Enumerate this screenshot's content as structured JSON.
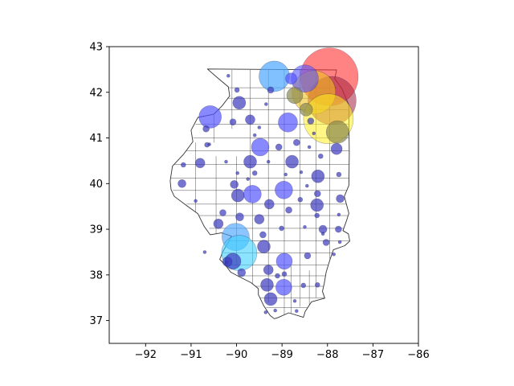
{
  "chart_data": {
    "type": "scatter",
    "xlim": [
      -92.8,
      -86.0
    ],
    "ylim": [
      36.5,
      43.0
    ],
    "xticks": [
      -92,
      -91,
      -90,
      -89,
      -88,
      -87,
      -86
    ],
    "yticks": [
      37,
      38,
      39,
      40,
      41,
      42,
      43
    ],
    "xtick_labels": [
      "−92",
      "−91",
      "−90",
      "−89",
      "−88",
      "−87",
      "−86"
    ],
    "ytick_labels": [
      "37",
      "38",
      "39",
      "40",
      "41",
      "42",
      "43"
    ],
    "grid": false,
    "colors": {
      "small": "#3a3abd",
      "medium": "#5555ff",
      "light_blue": "#4da6ff",
      "cyan": "#40d0ff",
      "red": "#ff3030",
      "dark_red": "#a02040",
      "gold": "#f0c020",
      "yellow": "#ffee20",
      "olive": "#8a8a50",
      "map_edge": "#333333"
    },
    "state_outline": [
      [
        -90.64,
        42.51
      ],
      [
        -87.8,
        42.49
      ],
      [
        -87.84,
        42.3
      ],
      [
        -87.68,
        42.07
      ],
      [
        -87.53,
        41.72
      ],
      [
        -87.53,
        41.47
      ],
      [
        -87.52,
        40.64
      ],
      [
        -87.53,
        39.96
      ],
      [
        -87.63,
        39.72
      ],
      [
        -87.53,
        39.35
      ],
      [
        -87.58,
        39.19
      ],
      [
        -87.66,
        38.97
      ],
      [
        -87.54,
        38.9
      ],
      [
        -87.51,
        38.74
      ],
      [
        -87.62,
        38.64
      ],
      [
        -87.87,
        38.55
      ],
      [
        -87.95,
        38.32
      ],
      [
        -88.03,
        38.06
      ],
      [
        -88.07,
        37.82
      ],
      [
        -88.11,
        37.64
      ],
      [
        -88.06,
        37.49
      ],
      [
        -88.35,
        37.41
      ],
      [
        -88.49,
        37.2
      ],
      [
        -88.53,
        37.07
      ],
      [
        -88.85,
        37.17
      ],
      [
        -89.1,
        37.06
      ],
      [
        -89.17,
        37.04
      ],
      [
        -89.26,
        37.11
      ],
      [
        -89.4,
        37.32
      ],
      [
        -89.52,
        37.57
      ],
      [
        -89.52,
        37.7
      ],
      [
        -89.68,
        37.83
      ],
      [
        -89.96,
        37.97
      ],
      [
        -90.13,
        38.06
      ],
      [
        -90.25,
        38.22
      ],
      [
        -90.37,
        38.34
      ],
      [
        -90.3,
        38.51
      ],
      [
        -90.19,
        38.7
      ],
      [
        -90.11,
        38.85
      ],
      [
        -90.33,
        38.92
      ],
      [
        -90.58,
        38.88
      ],
      [
        -90.71,
        39.06
      ],
      [
        -90.85,
        39.34
      ],
      [
        -91.1,
        39.52
      ],
      [
        -91.37,
        39.72
      ],
      [
        -91.44,
        39.87
      ],
      [
        -91.46,
        40.06
      ],
      [
        -91.41,
        40.38
      ],
      [
        -91.16,
        40.65
      ],
      [
        -90.96,
        40.92
      ],
      [
        -91.0,
        41.17
      ],
      [
        -90.85,
        41.45
      ],
      [
        -90.5,
        41.52
      ],
      [
        -90.32,
        41.7
      ],
      [
        -90.15,
        41.92
      ],
      [
        -90.18,
        42.12
      ],
      [
        -90.42,
        42.32
      ],
      [
        -90.64,
        42.51
      ]
    ],
    "county_lines": [
      [
        [
          -90.5,
          42.1
        ],
        [
          -87.8,
          42.1
        ]
      ],
      [
        [
          -90.2,
          41.87
        ],
        [
          -87.7,
          41.87
        ]
      ],
      [
        [
          -90.4,
          41.62
        ],
        [
          -87.55,
          41.62
        ]
      ],
      [
        [
          -90.9,
          41.3
        ],
        [
          -87.53,
          41.3
        ]
      ],
      [
        [
          -90.95,
          41.0
        ],
        [
          -87.53,
          41.0
        ]
      ],
      [
        [
          -91.1,
          40.72
        ],
        [
          -87.52,
          40.72
        ]
      ],
      [
        [
          -91.4,
          40.42
        ],
        [
          -87.52,
          40.42
        ]
      ],
      [
        [
          -91.45,
          40.12
        ],
        [
          -87.53,
          40.12
        ]
      ],
      [
        [
          -91.4,
          39.85
        ],
        [
          -87.53,
          39.85
        ]
      ],
      [
        [
          -91.1,
          39.55
        ],
        [
          -87.55,
          39.55
        ]
      ],
      [
        [
          -90.85,
          39.3
        ],
        [
          -87.55,
          39.3
        ]
      ],
      [
        [
          -90.6,
          39.02
        ],
        [
          -87.62,
          39.02
        ]
      ],
      [
        [
          -90.2,
          38.75
        ],
        [
          -87.52,
          38.75
        ]
      ],
      [
        [
          -90.28,
          38.48
        ],
        [
          -87.85,
          38.48
        ]
      ],
      [
        [
          -90.2,
          38.22
        ],
        [
          -87.96,
          38.22
        ]
      ],
      [
        [
          -89.98,
          37.98
        ],
        [
          -88.05,
          37.98
        ]
      ],
      [
        [
          -89.7,
          37.75
        ],
        [
          -88.08,
          37.75
        ]
      ],
      [
        [
          -89.52,
          37.5
        ],
        [
          -88.07,
          37.5
        ]
      ],
      [
        [
          -89.35,
          37.28
        ],
        [
          -88.4,
          37.28
        ]
      ],
      [
        [
          -90.1,
          42.49
        ],
        [
          -90.1,
          41.2
        ]
      ],
      [
        [
          -89.7,
          42.49
        ],
        [
          -89.7,
          39.6
        ]
      ],
      [
        [
          -89.3,
          42.49
        ],
        [
          -89.3,
          37.4
        ]
      ],
      [
        [
          -88.95,
          42.49
        ],
        [
          -88.95,
          37.12
        ]
      ],
      [
        [
          -88.6,
          42.49
        ],
        [
          -88.6,
          37.3
        ]
      ],
      [
        [
          -88.25,
          42.49
        ],
        [
          -88.25,
          37.5
        ]
      ],
      [
        [
          -87.95,
          42.35
        ],
        [
          -87.95,
          38.35
        ]
      ],
      [
        [
          -90.5,
          41.5
        ],
        [
          -90.5,
          40.9
        ]
      ],
      [
        [
          -90.9,
          40.9
        ],
        [
          -90.9,
          39.3
        ]
      ],
      [
        [
          -90.45,
          40.6
        ],
        [
          -90.45,
          38.9
        ]
      ],
      [
        [
          -90.0,
          40.6
        ],
        [
          -90.0,
          38.2
        ]
      ],
      [
        [
          -89.65,
          39.6
        ],
        [
          -89.65,
          37.7
        ]
      ],
      [
        [
          -88.8,
          38.2
        ],
        [
          -88.8,
          37.15
        ]
      ],
      [
        [
          -88.4,
          38.1
        ],
        [
          -88.4,
          37.35
        ]
      ]
    ],
    "points": [
      {
        "x": -87.96,
        "y": 42.34,
        "r": 36,
        "color": "red",
        "alpha": 0.6
      },
      {
        "x": -87.9,
        "y": 41.82,
        "r": 30,
        "color": "dark_red",
        "alpha": 0.55
      },
      {
        "x": -88.3,
        "y": 42.0,
        "r": 27,
        "color": "gold",
        "alpha": 0.6
      },
      {
        "x": -87.98,
        "y": 41.42,
        "r": 31,
        "color": "yellow",
        "alpha": 0.55
      },
      {
        "x": -88.5,
        "y": 42.3,
        "r": 17,
        "color": "medium",
        "alpha": 0.6
      },
      {
        "x": -89.17,
        "y": 42.35,
        "r": 19,
        "color": "light_blue",
        "alpha": 0.7
      },
      {
        "x": -88.8,
        "y": 42.3,
        "r": 7,
        "color": "medium",
        "alpha": 0.7
      },
      {
        "x": -88.72,
        "y": 41.93,
        "r": 10,
        "color": "olive",
        "alpha": 0.7
      },
      {
        "x": -88.47,
        "y": 41.62,
        "r": 8,
        "color": "olive",
        "alpha": 0.7
      },
      {
        "x": -87.78,
        "y": 41.13,
        "r": 14,
        "color": "olive",
        "alpha": 0.7
      },
      {
        "x": -88.37,
        "y": 41.37,
        "r": 4,
        "color": "small",
        "alpha": 0.7
      },
      {
        "x": -87.8,
        "y": 40.76,
        "r": 7,
        "color": "small",
        "alpha": 0.7
      },
      {
        "x": -88.15,
        "y": 40.6,
        "r": 3,
        "color": "small",
        "alpha": 0.7
      },
      {
        "x": -90.58,
        "y": 41.46,
        "r": 14,
        "color": "medium",
        "alpha": 0.7
      },
      {
        "x": -90.67,
        "y": 41.2,
        "r": 4,
        "color": "small",
        "alpha": 0.7
      },
      {
        "x": -89.94,
        "y": 41.77,
        "r": 8,
        "color": "small",
        "alpha": 0.7
      },
      {
        "x": -89.7,
        "y": 41.4,
        "r": 6,
        "color": "small",
        "alpha": 0.7
      },
      {
        "x": -90.08,
        "y": 41.35,
        "r": 4,
        "color": "small",
        "alpha": 0.7
      },
      {
        "x": -89.99,
        "y": 42.05,
        "r": 3,
        "color": "small",
        "alpha": 0.7
      },
      {
        "x": -90.18,
        "y": 42.36,
        "r": 2,
        "color": "small",
        "alpha": 0.7
      },
      {
        "x": -89.25,
        "y": 42.05,
        "r": 4,
        "color": "small",
        "alpha": 0.7
      },
      {
        "x": -89.35,
        "y": 41.74,
        "r": 2,
        "color": "small",
        "alpha": 0.7
      },
      {
        "x": -88.87,
        "y": 41.34,
        "r": 12,
        "color": "medium",
        "alpha": 0.7
      },
      {
        "x": -89.5,
        "y": 41.23,
        "r": 2,
        "color": "small",
        "alpha": 0.7
      },
      {
        "x": -89.48,
        "y": 40.8,
        "r": 11,
        "color": "medium",
        "alpha": 0.7
      },
      {
        "x": -88.68,
        "y": 40.9,
        "r": 4,
        "color": "small",
        "alpha": 0.7
      },
      {
        "x": -89.07,
        "y": 40.8,
        "r": 4,
        "color": "small",
        "alpha": 0.7
      },
      {
        "x": -89.6,
        "y": 41.06,
        "r": 2,
        "color": "small",
        "alpha": 0.7
      },
      {
        "x": -89.7,
        "y": 40.48,
        "r": 8,
        "color": "small",
        "alpha": 0.7
      },
      {
        "x": -88.78,
        "y": 40.48,
        "r": 8,
        "color": "small",
        "alpha": 0.7
      },
      {
        "x": -90.23,
        "y": 40.48,
        "r": 2,
        "color": "small",
        "alpha": 0.7
      },
      {
        "x": -90.6,
        "y": 40.86,
        "r": 2,
        "color": "small",
        "alpha": 0.7
      },
      {
        "x": -90.8,
        "y": 40.45,
        "r": 6,
        "color": "small",
        "alpha": 0.7
      },
      {
        "x": -91.17,
        "y": 40.41,
        "r": 3,
        "color": "small",
        "alpha": 0.7
      },
      {
        "x": -89.98,
        "y": 40.23,
        "r": 2,
        "color": "small",
        "alpha": 0.7
      },
      {
        "x": -89.6,
        "y": 40.23,
        "r": 3,
        "color": "small",
        "alpha": 0.7
      },
      {
        "x": -88.92,
        "y": 40.2,
        "r": 2,
        "color": "small",
        "alpha": 0.7
      },
      {
        "x": -88.58,
        "y": 40.25,
        "r": 2,
        "color": "small",
        "alpha": 0.7
      },
      {
        "x": -88.21,
        "y": 40.16,
        "r": 8,
        "color": "small",
        "alpha": 0.7
      },
      {
        "x": -87.75,
        "y": 40.2,
        "r": 3,
        "color": "small",
        "alpha": 0.7
      },
      {
        "x": -91.2,
        "y": 40.0,
        "r": 5,
        "color": "small",
        "alpha": 0.7
      },
      {
        "x": -90.05,
        "y": 39.98,
        "r": 5,
        "color": "small",
        "alpha": 0.7
      },
      {
        "x": -90.9,
        "y": 39.62,
        "r": 2,
        "color": "small",
        "alpha": 0.7
      },
      {
        "x": -89.97,
        "y": 39.74,
        "r": 8,
        "color": "small",
        "alpha": 0.7
      },
      {
        "x": -89.65,
        "y": 39.77,
        "r": 11,
        "color": "medium",
        "alpha": 0.7
      },
      {
        "x": -88.96,
        "y": 39.86,
        "r": 11,
        "color": "medium",
        "alpha": 0.7
      },
      {
        "x": -89.28,
        "y": 39.55,
        "r": 6,
        "color": "small",
        "alpha": 0.7
      },
      {
        "x": -88.6,
        "y": 39.65,
        "r": 3,
        "color": "small",
        "alpha": 0.7
      },
      {
        "x": -88.22,
        "y": 39.78,
        "r": 4,
        "color": "small",
        "alpha": 0.7
      },
      {
        "x": -88.23,
        "y": 39.53,
        "r": 8,
        "color": "small",
        "alpha": 0.7
      },
      {
        "x": -87.72,
        "y": 39.67,
        "r": 5,
        "color": "small",
        "alpha": 0.7
      },
      {
        "x": -88.85,
        "y": 39.42,
        "r": 4,
        "color": "small",
        "alpha": 0.7
      },
      {
        "x": -88.23,
        "y": 39.3,
        "r": 3,
        "color": "small",
        "alpha": 0.7
      },
      {
        "x": -87.75,
        "y": 39.32,
        "r": 2,
        "color": "small",
        "alpha": 0.7
      },
      {
        "x": -90.3,
        "y": 39.36,
        "r": 4,
        "color": "small",
        "alpha": 0.7
      },
      {
        "x": -90.4,
        "y": 39.12,
        "r": 6,
        "color": "small",
        "alpha": 0.7
      },
      {
        "x": -89.93,
        "y": 39.27,
        "r": 5,
        "color": "small",
        "alpha": 0.7
      },
      {
        "x": -89.5,
        "y": 39.22,
        "r": 6,
        "color": "small",
        "alpha": 0.7
      },
      {
        "x": -89.01,
        "y": 39.02,
        "r": 3,
        "color": "small",
        "alpha": 0.7
      },
      {
        "x": -88.5,
        "y": 39.05,
        "r": 2,
        "color": "small",
        "alpha": 0.7
      },
      {
        "x": -88.1,
        "y": 39.0,
        "r": 5,
        "color": "small",
        "alpha": 0.7
      },
      {
        "x": -87.76,
        "y": 39.0,
        "r": 4,
        "color": "small",
        "alpha": 0.7
      },
      {
        "x": -90.02,
        "y": 38.83,
        "r": 17,
        "color": "light_blue",
        "alpha": 0.65
      },
      {
        "x": -89.42,
        "y": 38.88,
        "r": 4,
        "color": "small",
        "alpha": 0.7
      },
      {
        "x": -89.4,
        "y": 38.62,
        "r": 8,
        "color": "small",
        "alpha": 0.7
      },
      {
        "x": -88.03,
        "y": 38.71,
        "r": 4,
        "color": "small",
        "alpha": 0.7
      },
      {
        "x": -87.73,
        "y": 38.72,
        "r": 2,
        "color": "small",
        "alpha": 0.7
      },
      {
        "x": -89.94,
        "y": 38.48,
        "r": 22,
        "color": "cyan",
        "alpha": 0.6
      },
      {
        "x": -90.2,
        "y": 38.29,
        "r": 6,
        "color": "small",
        "alpha": 0.7
      },
      {
        "x": -88.95,
        "y": 38.3,
        "r": 10,
        "color": "medium",
        "alpha": 0.7
      },
      {
        "x": -88.44,
        "y": 38.42,
        "r": 4,
        "color": "small",
        "alpha": 0.7
      },
      {
        "x": -87.86,
        "y": 38.45,
        "r": 2,
        "color": "small",
        "alpha": 0.7
      },
      {
        "x": -89.3,
        "y": 38.11,
        "r": 6,
        "color": "small",
        "alpha": 0.7
      },
      {
        "x": -89.89,
        "y": 38.05,
        "r": 5,
        "color": "small",
        "alpha": 0.7
      },
      {
        "x": -88.95,
        "y": 38.02,
        "r": 3,
        "color": "small",
        "alpha": 0.7
      },
      {
        "x": -89.33,
        "y": 37.78,
        "r": 8,
        "color": "small",
        "alpha": 0.7
      },
      {
        "x": -88.96,
        "y": 37.73,
        "r": 10,
        "color": "medium",
        "alpha": 0.7
      },
      {
        "x": -88.53,
        "y": 37.77,
        "r": 3,
        "color": "small",
        "alpha": 0.7
      },
      {
        "x": -88.22,
        "y": 37.78,
        "r": 3,
        "color": "small",
        "alpha": 0.7
      },
      {
        "x": -89.25,
        "y": 37.47,
        "r": 8,
        "color": "small",
        "alpha": 0.7
      },
      {
        "x": -88.72,
        "y": 37.43,
        "r": 2,
        "color": "small",
        "alpha": 0.7
      },
      {
        "x": -88.68,
        "y": 37.21,
        "r": 2,
        "color": "small",
        "alpha": 0.7
      },
      {
        "x": -89.15,
        "y": 37.22,
        "r": 2,
        "color": "small",
        "alpha": 0.7
      },
      {
        "x": -89.36,
        "y": 37.18,
        "r": 2,
        "color": "small",
        "alpha": 0.7
      },
      {
        "x": -90.65,
        "y": 40.85,
        "r": 3,
        "color": "small",
        "alpha": 0.7
      },
      {
        "x": -88.45,
        "y": 39.95,
        "r": 2,
        "color": "small",
        "alpha": 0.7
      },
      {
        "x": -89.1,
        "y": 37.98,
        "r": 3,
        "color": "small",
        "alpha": 0.7
      },
      {
        "x": -88.1,
        "y": 38.9,
        "r": 2,
        "color": "small",
        "alpha": 0.7
      },
      {
        "x": -90.7,
        "y": 38.5,
        "r": 2,
        "color": "small",
        "alpha": 0.7
      },
      {
        "x": -90.22,
        "y": 38.28,
        "r": 2,
        "color": "small",
        "alpha": 0.7
      },
      {
        "x": -89.75,
        "y": 40.1,
        "r": 2,
        "color": "small",
        "alpha": 0.7
      },
      {
        "x": -89.3,
        "y": 40.48,
        "r": 2,
        "color": "small",
        "alpha": 0.7
      },
      {
        "x": -88.4,
        "y": 40.8,
        "r": 2,
        "color": "small",
        "alpha": 0.7
      },
      {
        "x": -88.3,
        "y": 41.1,
        "r": 2,
        "color": "small",
        "alpha": 0.7
      },
      {
        "x": -90.08,
        "y": 38.3,
        "r": 10,
        "color": "small",
        "alpha": 0.7
      }
    ]
  }
}
